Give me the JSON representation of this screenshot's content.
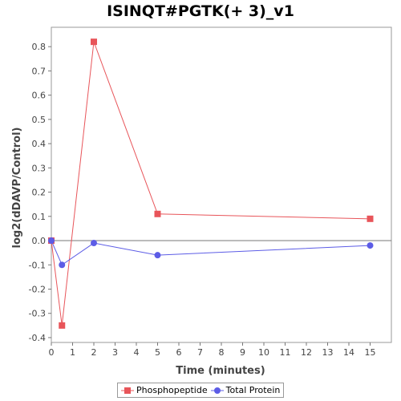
{
  "chart_data": {
    "type": "line",
    "title": "ISINQT#PGTK(+ 3)_v1",
    "xlabel": "Time (minutes)",
    "ylabel": "log2(dDAVP/Control)",
    "xlim": [
      0,
      16
    ],
    "ylim": [
      -0.42,
      0.88
    ],
    "x_ticks": [
      0,
      1,
      2,
      3,
      4,
      5,
      6,
      7,
      8,
      9,
      10,
      11,
      12,
      13,
      14,
      15
    ],
    "y_ticks": [
      -0.4,
      -0.3,
      -0.2,
      -0.1,
      0.0,
      0.1,
      0.2,
      0.3,
      0.4,
      0.5,
      0.6,
      0.7,
      0.8
    ],
    "zero_line": true,
    "grid": false,
    "legend_position": "bottom",
    "series": [
      {
        "name": "Phosphopeptide",
        "color": "#e8555a",
        "marker": "square",
        "x": [
          0,
          0.5,
          2,
          5,
          15
        ],
        "y": [
          0.0,
          -0.35,
          0.82,
          0.11,
          0.09
        ]
      },
      {
        "name": "Total Protein",
        "color": "#5c5ce6",
        "marker": "circle",
        "x": [
          0,
          0.5,
          2,
          5,
          15
        ],
        "y": [
          0.0,
          -0.1,
          -0.01,
          -0.06,
          -0.02
        ]
      }
    ]
  }
}
